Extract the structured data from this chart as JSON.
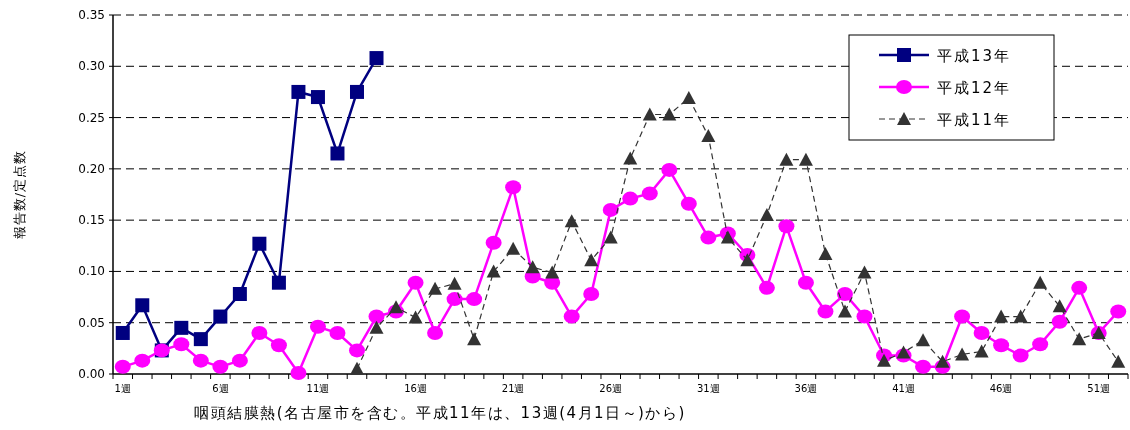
{
  "chart_data": {
    "type": "line",
    "xlabel": "咽頭結膜熱(名古屋市を含む。平成11年は、13週(4月1日～)から)",
    "ylabel": "報告数/定点数",
    "categories": [
      "1週",
      null,
      null,
      null,
      null,
      "6週",
      null,
      null,
      null,
      null,
      "11週",
      null,
      null,
      null,
      null,
      "16週",
      null,
      null,
      null,
      null,
      "21週",
      null,
      null,
      null,
      null,
      "26週",
      null,
      null,
      null,
      null,
      "31週",
      null,
      null,
      null,
      null,
      "36週",
      null,
      null,
      null,
      null,
      "41週",
      null,
      null,
      null,
      null,
      "46週",
      null,
      null,
      null,
      null,
      "51週",
      null
    ],
    "ylim": [
      0,
      0.35
    ],
    "yticks": [
      {
        "value": 0,
        "label": "0.00"
      },
      {
        "value": 0.05,
        "label": "0.05"
      },
      {
        "value": 0.1,
        "label": "0.10"
      },
      {
        "value": 0.15,
        "label": "0.15"
      },
      {
        "value": 0.2,
        "label": "0.20"
      },
      {
        "value": 0.25,
        "label": "0.25"
      },
      {
        "value": 0.3,
        "label": "0.30"
      },
      {
        "value": 0.35,
        "label": "0.35"
      }
    ],
    "grid": "y",
    "legend": "top right",
    "series": [
      {
        "name": "平成13年",
        "color": "#000080",
        "marker": "square",
        "line_style": "solid",
        "values": [
          0.04,
          0.067,
          0.023,
          0.045,
          0.034,
          0.056,
          0.078,
          0.127,
          0.089,
          0.275,
          0.27,
          0.215,
          0.275,
          0.308,
          null,
          null,
          null,
          null,
          null,
          null,
          null,
          null,
          null,
          null,
          null,
          null,
          null,
          null,
          null,
          null,
          null,
          null,
          null,
          null,
          null,
          null,
          null,
          null,
          null,
          null,
          null,
          null,
          null,
          null,
          null,
          null,
          null,
          null,
          null,
          null,
          null,
          null
        ]
      },
      {
        "name": "平成12年",
        "color": "#ff00ff",
        "marker": "circle",
        "line_style": "solid",
        "values": [
          0.007,
          0.013,
          0.023,
          0.029,
          0.013,
          0.007,
          0.013,
          0.04,
          0.028,
          0.001,
          0.046,
          0.04,
          0.023,
          0.056,
          0.061,
          0.089,
          0.04,
          0.073,
          0.073,
          0.128,
          0.182,
          0.095,
          0.089,
          0.056,
          0.078,
          0.16,
          0.171,
          0.176,
          0.199,
          0.166,
          0.133,
          0.137,
          0.116,
          0.084,
          0.144,
          0.089,
          0.061,
          0.078,
          0.056,
          0.018,
          0.018,
          0.007,
          0.007,
          0.056,
          0.04,
          0.028,
          0.018,
          0.029,
          0.051,
          0.084,
          0.04,
          0.061
        ]
      },
      {
        "name": "平成11年",
        "color": "#333333",
        "marker": "triangle",
        "line_style": "dashed",
        "values": [
          null,
          null,
          null,
          null,
          null,
          null,
          null,
          null,
          null,
          null,
          null,
          null,
          0.005,
          0.045,
          0.065,
          0.055,
          0.083,
          0.088,
          0.034,
          0.1,
          0.122,
          0.104,
          0.099,
          0.149,
          0.111,
          0.133,
          0.21,
          0.253,
          0.253,
          0.269,
          0.232,
          0.133,
          0.111,
          0.155,
          0.209,
          0.209,
          0.117,
          0.061,
          0.099,
          0.013,
          0.021,
          0.033,
          0.012,
          0.019,
          0.022,
          0.056,
          0.056,
          0.089,
          0.066,
          0.034,
          0.04,
          0.012
        ]
      }
    ]
  }
}
